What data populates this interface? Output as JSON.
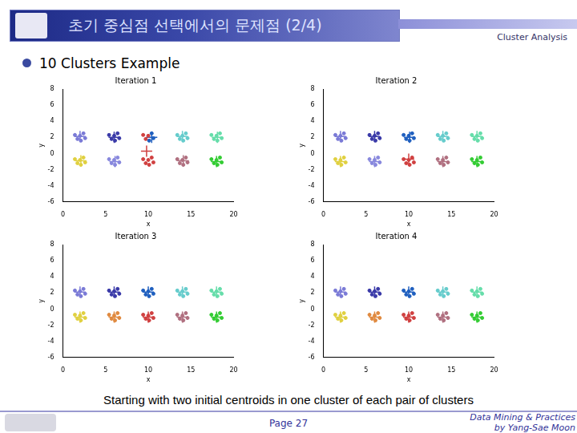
{
  "page": {
    "title": "초기 중심점 선택에서의 문제점 (2/4)",
    "section": "Cluster Analysis",
    "bullet": "10 Clusters Example",
    "caption": "Starting with two initial centroids in one cluster of each pair of clusters",
    "page_number": "Page 27",
    "footer": [
      "Data Mining & Practices",
      "by Yang-Sae Moon"
    ]
  },
  "chart_data": [
    {
      "type": "scatter",
      "title": "Iteration 1",
      "x_label": "x",
      "y_label": "y",
      "xlim": [
        0,
        20
      ],
      "ylim": [
        -6,
        8
      ],
      "xticks": [
        0,
        5,
        10,
        15,
        20
      ],
      "yticks": [
        -6,
        -4,
        -2,
        0,
        2,
        4,
        6,
        8
      ],
      "grid": false,
      "series": [
        {
          "color": "#7a7ad6",
          "marker": "circle",
          "x": [
            1.4,
            2.4,
            2.1,
            1.7,
            2.6,
            2.0
          ],
          "values": [
            2.3,
            2.5,
            1.6,
            1.8,
            1.9,
            2.2
          ]
        },
        {
          "color": "#e0d040",
          "marker": "circle",
          "x": [
            1.4,
            2.4,
            2.1,
            1.7,
            2.6,
            2.0
          ],
          "values": [
            -0.7,
            -0.5,
            -1.4,
            -1.2,
            -1.1,
            -0.8
          ]
        },
        {
          "color": "#3a3aa8",
          "marker": "circle",
          "x": [
            5.4,
            6.4,
            6.1,
            5.7,
            6.6,
            6.0
          ],
          "values": [
            2.3,
            2.5,
            1.6,
            1.8,
            1.9,
            2.2
          ]
        },
        {
          "color": "#8888dd",
          "marker": "circle",
          "x": [
            5.4,
            6.4,
            6.1,
            5.7,
            6.6,
            6.0
          ],
          "values": [
            -0.7,
            -0.5,
            -1.4,
            -1.2,
            -1.1,
            -0.8
          ]
        },
        {
          "color": "#1f5fbf",
          "marker": "circle",
          "x": [
            10.4,
            10.1,
            10.6
          ],
          "values": [
            2.5,
            1.6,
            1.9
          ]
        },
        {
          "color": "#d04040",
          "marker": "circle",
          "x": [
            9.4,
            9.7,
            10.0,
            9.4,
            10.4,
            10.1,
            9.7,
            10.6,
            10.0
          ],
          "values": [
            2.3,
            1.8,
            2.2,
            -0.7,
            -0.5,
            -1.4,
            -1.2,
            -1.1,
            -0.8
          ]
        },
        {
          "color": "#66cccc",
          "marker": "circle",
          "x": [
            13.4,
            14.4,
            14.1,
            13.7,
            14.6,
            14.0
          ],
          "values": [
            2.3,
            2.5,
            1.6,
            1.8,
            1.9,
            2.2
          ]
        },
        {
          "color": "#b07080",
          "marker": "circle",
          "x": [
            13.4,
            14.4,
            14.1,
            13.7,
            14.6,
            14.0
          ],
          "values": [
            -0.7,
            -0.5,
            -1.4,
            -1.2,
            -1.1,
            -0.8
          ]
        },
        {
          "color": "#66ddaa",
          "marker": "circle",
          "x": [
            17.4,
            18.4,
            18.1,
            17.7,
            18.6,
            18.0
          ],
          "values": [
            2.3,
            2.5,
            1.6,
            1.8,
            1.9,
            2.2
          ]
        },
        {
          "color": "#33cc33",
          "marker": "circle",
          "x": [
            17.4,
            18.4,
            18.1,
            17.7,
            18.6,
            18.0
          ],
          "values": [
            -0.7,
            -0.5,
            -1.4,
            -1.2,
            -1.1,
            -0.8
          ]
        },
        {
          "marker": "cross",
          "colors": [
            "#7a7ad6",
            "#e0d040",
            "#3a3aa8",
            "#8888dd",
            "#1f5fbf",
            "#d04040",
            "#66cccc",
            "#b07080",
            "#66ddaa",
            "#33cc33"
          ],
          "x": [
            2.0,
            2.1,
            6.0,
            6.1,
            10.4,
            9.8,
            14.0,
            14.1,
            18.1,
            18.0
          ],
          "values": [
            2.1,
            -0.9,
            2.0,
            -1.0,
            2.0,
            0.3,
            2.1,
            -0.9,
            2.0,
            -1.0
          ]
        }
      ]
    },
    {
      "type": "scatter",
      "title": "Iteration 2",
      "x_label": "x",
      "y_label": "y",
      "xlim": [
        0,
        20
      ],
      "ylim": [
        -6,
        8
      ],
      "xticks": [
        0,
        5,
        10,
        15,
        20
      ],
      "yticks": [
        -6,
        -4,
        -2,
        0,
        2,
        4,
        6,
        8
      ],
      "grid": false,
      "series": [
        {
          "color": "#7a7ad6",
          "marker": "circle",
          "x": [
            1.4,
            2.4,
            2.1,
            1.7,
            2.6,
            2.0
          ],
          "values": [
            2.3,
            2.5,
            1.6,
            1.8,
            1.9,
            2.2
          ]
        },
        {
          "color": "#e0d040",
          "marker": "circle",
          "x": [
            1.4,
            2.4,
            2.1,
            1.7,
            2.6,
            2.0
          ],
          "values": [
            -0.7,
            -0.5,
            -1.4,
            -1.2,
            -1.1,
            -0.8
          ]
        },
        {
          "color": "#3a3aa8",
          "marker": "circle",
          "x": [
            5.4,
            6.4,
            6.1,
            5.7,
            6.6,
            6.0
          ],
          "values": [
            2.3,
            2.5,
            1.6,
            1.8,
            1.9,
            2.2
          ]
        },
        {
          "color": "#8888dd",
          "marker": "circle",
          "x": [
            5.4,
            6.4,
            6.1,
            5.7,
            6.6,
            6.0
          ],
          "values": [
            -0.7,
            -0.5,
            -1.4,
            -1.2,
            -1.1,
            -0.8
          ]
        },
        {
          "color": "#1f5fbf",
          "marker": "circle",
          "x": [
            9.4,
            10.4,
            10.1,
            9.7,
            10.6,
            10.0
          ],
          "values": [
            2.3,
            2.5,
            1.6,
            1.8,
            1.9,
            2.2
          ]
        },
        {
          "color": "#d04040",
          "marker": "circle",
          "x": [
            9.4,
            10.4,
            10.1,
            9.7,
            10.6,
            10.0
          ],
          "values": [
            -0.7,
            -0.5,
            -1.4,
            -1.2,
            -1.1,
            -0.8
          ]
        },
        {
          "color": "#66cccc",
          "marker": "circle",
          "x": [
            13.4,
            14.4,
            14.1,
            13.7,
            14.6,
            14.0
          ],
          "values": [
            2.3,
            2.5,
            1.6,
            1.8,
            1.9,
            2.2
          ]
        },
        {
          "color": "#b07080",
          "marker": "circle",
          "x": [
            13.4,
            14.4,
            14.1,
            13.7,
            14.6,
            14.0
          ],
          "values": [
            -0.7,
            -0.5,
            -1.4,
            -1.2,
            -1.1,
            -0.8
          ]
        },
        {
          "color": "#66ddaa",
          "marker": "circle",
          "x": [
            17.4,
            18.4,
            18.1,
            17.7,
            18.6,
            18.0
          ],
          "values": [
            2.3,
            2.5,
            1.6,
            1.8,
            1.9,
            2.2
          ]
        },
        {
          "color": "#33cc33",
          "marker": "circle",
          "x": [
            17.4,
            18.4,
            18.1,
            17.7,
            18.6,
            18.0
          ],
          "values": [
            -0.7,
            -0.5,
            -1.4,
            -1.2,
            -1.1,
            -0.8
          ]
        },
        {
          "marker": "cross",
          "colors": [
            "#7a7ad6",
            "#e0d040",
            "#3a3aa8",
            "#8888dd",
            "#1f5fbf",
            "#d04040",
            "#66cccc",
            "#b07080",
            "#66ddaa",
            "#33cc33"
          ],
          "x": [
            2.0,
            2.0,
            6.0,
            6.0,
            10.1,
            10.0,
            14.0,
            14.0,
            18.0,
            18.0
          ],
          "values": [
            2.1,
            -1.0,
            2.1,
            -1.0,
            2.0,
            -0.7,
            2.1,
            -1.0,
            2.1,
            -1.0
          ]
        }
      ]
    },
    {
      "type": "scatter",
      "title": "Iteration 3",
      "x_label": "x",
      "y_label": "y",
      "xlim": [
        0,
        20
      ],
      "ylim": [
        -6,
        8
      ],
      "xticks": [
        0,
        5,
        10,
        15,
        20
      ],
      "yticks": [
        -6,
        -4,
        -2,
        0,
        2,
        4,
        6,
        8
      ],
      "grid": false,
      "series": [
        {
          "color": "#7a7ad6",
          "marker": "circle",
          "x": [
            1.4,
            2.4,
            2.1,
            1.7,
            2.6,
            2.0
          ],
          "values": [
            2.3,
            2.5,
            1.6,
            1.8,
            1.9,
            2.2
          ]
        },
        {
          "color": "#e0d040",
          "marker": "circle",
          "x": [
            1.4,
            2.4,
            2.1,
            1.7,
            2.6,
            2.0
          ],
          "values": [
            -0.7,
            -0.5,
            -1.4,
            -1.2,
            -1.1,
            -0.8
          ]
        },
        {
          "color": "#3a3aa8",
          "marker": "circle",
          "x": [
            5.4,
            6.4,
            6.1,
            5.7,
            6.6,
            6.0
          ],
          "values": [
            2.3,
            2.5,
            1.6,
            1.8,
            1.9,
            2.2
          ]
        },
        {
          "color": "#e08a40",
          "marker": "circle",
          "x": [
            5.4,
            6.4,
            6.1,
            5.7,
            6.6,
            6.0
          ],
          "values": [
            -0.7,
            -0.5,
            -1.4,
            -1.2,
            -1.1,
            -0.8
          ]
        },
        {
          "color": "#1f5fbf",
          "marker": "circle",
          "x": [
            9.4,
            10.4,
            10.1,
            9.7,
            10.6,
            10.0
          ],
          "values": [
            2.3,
            2.5,
            1.6,
            1.8,
            1.9,
            2.2
          ]
        },
        {
          "color": "#d04040",
          "marker": "circle",
          "x": [
            9.4,
            10.4,
            10.1,
            9.7,
            10.6,
            10.0
          ],
          "values": [
            -0.7,
            -0.5,
            -1.4,
            -1.2,
            -1.1,
            -0.8
          ]
        },
        {
          "color": "#66cccc",
          "marker": "circle",
          "x": [
            13.4,
            14.4,
            14.1,
            13.7,
            14.6,
            14.0
          ],
          "values": [
            2.3,
            2.5,
            1.6,
            1.8,
            1.9,
            2.2
          ]
        },
        {
          "color": "#b07080",
          "marker": "circle",
          "x": [
            13.4,
            14.4,
            14.1,
            13.7,
            14.6,
            14.0
          ],
          "values": [
            -0.7,
            -0.5,
            -1.4,
            -1.2,
            -1.1,
            -0.8
          ]
        },
        {
          "color": "#66ddaa",
          "marker": "circle",
          "x": [
            17.4,
            18.4,
            18.1,
            17.7,
            18.6,
            18.0
          ],
          "values": [
            2.3,
            2.5,
            1.6,
            1.8,
            1.9,
            2.2
          ]
        },
        {
          "color": "#33cc33",
          "marker": "circle",
          "x": [
            17.4,
            18.4,
            18.1,
            17.7,
            18.6,
            18.0
          ],
          "values": [
            -0.7,
            -0.5,
            -1.4,
            -1.2,
            -1.1,
            -0.8
          ]
        },
        {
          "marker": "cross",
          "colors": [
            "#7a7ad6",
            "#e0d040",
            "#3a3aa8",
            "#e08a40",
            "#1f5fbf",
            "#d04040",
            "#66cccc",
            "#b07080",
            "#66ddaa",
            "#33cc33"
          ],
          "x": [
            2.0,
            2.0,
            6.0,
            6.0,
            10.0,
            10.0,
            14.0,
            14.0,
            18.0,
            18.0
          ],
          "values": [
            2.1,
            -1.0,
            2.1,
            -1.0,
            2.1,
            -1.0,
            2.1,
            -1.0,
            2.1,
            -1.0
          ]
        }
      ]
    },
    {
      "type": "scatter",
      "title": "Iteration 4",
      "x_label": "x",
      "y_label": "y",
      "xlim": [
        0,
        20
      ],
      "ylim": [
        -6,
        8
      ],
      "xticks": [
        0,
        5,
        10,
        15,
        20
      ],
      "yticks": [
        -6,
        -4,
        -2,
        0,
        2,
        4,
        6,
        8
      ],
      "grid": false,
      "series": [
        {
          "color": "#7a7ad6",
          "marker": "circle",
          "x": [
            1.4,
            2.4,
            2.1,
            1.7,
            2.6,
            2.0
          ],
          "values": [
            2.3,
            2.5,
            1.6,
            1.8,
            1.9,
            2.2
          ]
        },
        {
          "color": "#e0d040",
          "marker": "circle",
          "x": [
            1.4,
            2.4,
            2.1,
            1.7,
            2.6,
            2.0
          ],
          "values": [
            -0.7,
            -0.5,
            -1.4,
            -1.2,
            -1.1,
            -0.8
          ]
        },
        {
          "color": "#3a3aa8",
          "marker": "circle",
          "x": [
            5.4,
            6.4,
            6.1,
            5.7,
            6.6,
            6.0
          ],
          "values": [
            2.3,
            2.5,
            1.6,
            1.8,
            1.9,
            2.2
          ]
        },
        {
          "color": "#e08a40",
          "marker": "circle",
          "x": [
            5.4,
            6.4,
            6.1,
            5.7,
            6.6,
            6.0
          ],
          "values": [
            -0.7,
            -0.5,
            -1.4,
            -1.2,
            -1.1,
            -0.8
          ]
        },
        {
          "color": "#1f5fbf",
          "marker": "circle",
          "x": [
            9.4,
            10.4,
            10.1,
            9.7,
            10.6,
            10.0
          ],
          "values": [
            2.3,
            2.5,
            1.6,
            1.8,
            1.9,
            2.2
          ]
        },
        {
          "color": "#d04040",
          "marker": "circle",
          "x": [
            9.4,
            10.4,
            10.1,
            9.7,
            10.6,
            10.0
          ],
          "values": [
            -0.7,
            -0.5,
            -1.4,
            -1.2,
            -1.1,
            -0.8
          ]
        },
        {
          "color": "#66cccc",
          "marker": "circle",
          "x": [
            13.4,
            14.4,
            14.1,
            13.7,
            14.6,
            14.0
          ],
          "values": [
            2.3,
            2.5,
            1.6,
            1.8,
            1.9,
            2.2
          ]
        },
        {
          "color": "#b07080",
          "marker": "circle",
          "x": [
            13.4,
            14.4,
            14.1,
            13.7,
            14.6,
            14.0
          ],
          "values": [
            -0.7,
            -0.5,
            -1.4,
            -1.2,
            -1.1,
            -0.8
          ]
        },
        {
          "color": "#66ddaa",
          "marker": "circle",
          "x": [
            17.4,
            18.4,
            18.1,
            17.7,
            18.6,
            18.0
          ],
          "values": [
            2.3,
            2.5,
            1.6,
            1.8,
            1.9,
            2.2
          ]
        },
        {
          "color": "#33cc33",
          "marker": "circle",
          "x": [
            17.4,
            18.4,
            18.1,
            17.7,
            18.6,
            18.0
          ],
          "values": [
            -0.7,
            -0.5,
            -1.4,
            -1.2,
            -1.1,
            -0.8
          ]
        },
        {
          "marker": "cross",
          "colors": [
            "#7a7ad6",
            "#e0d040",
            "#3a3aa8",
            "#e08a40",
            "#1f5fbf",
            "#d04040",
            "#66cccc",
            "#b07080",
            "#66ddaa",
            "#33cc33"
          ],
          "x": [
            2.0,
            2.0,
            6.0,
            6.0,
            10.0,
            10.0,
            14.0,
            14.0,
            18.0,
            18.0
          ],
          "values": [
            2.1,
            -1.0,
            2.1,
            -1.0,
            2.1,
            -1.0,
            2.1,
            -1.0,
            2.1,
            -1.0
          ]
        }
      ]
    }
  ]
}
